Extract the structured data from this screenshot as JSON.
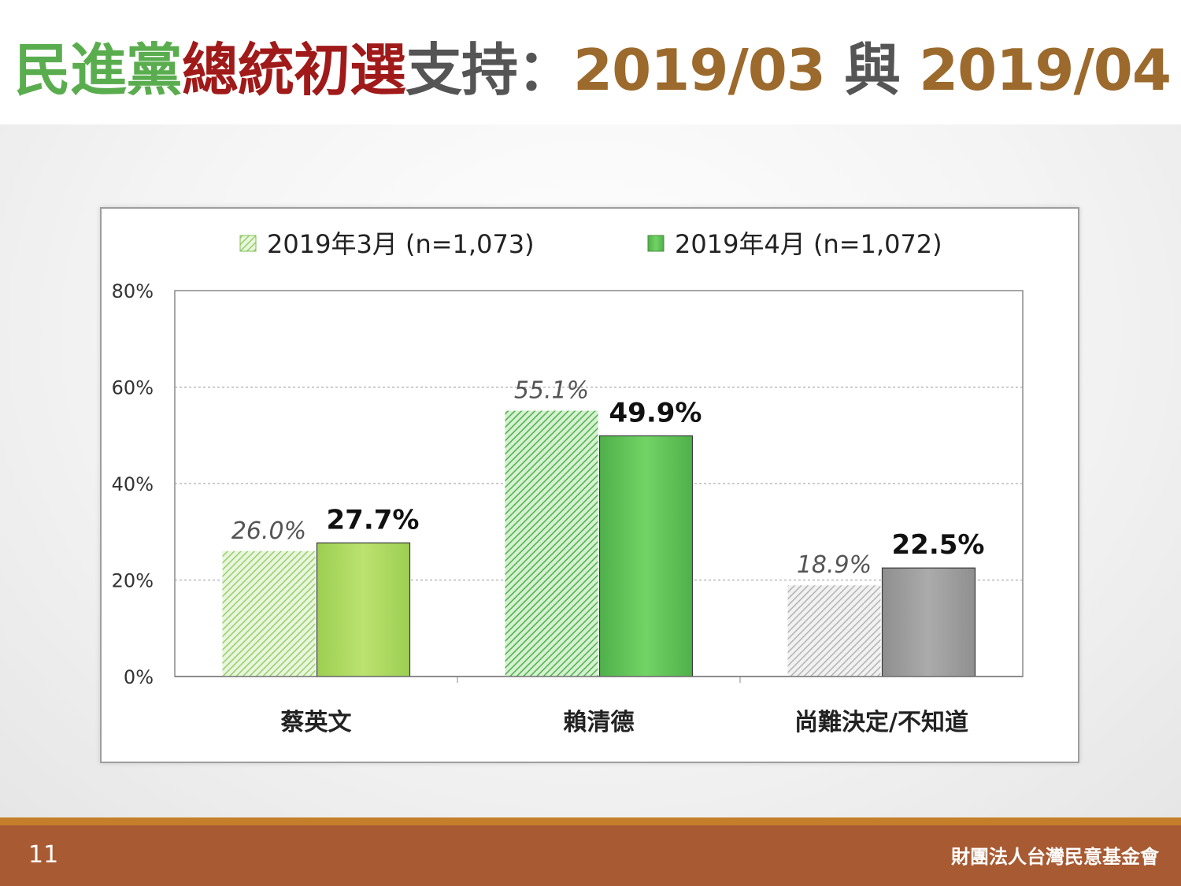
{
  "title": {
    "seg1": "民進黨",
    "seg2": "總統初選",
    "seg3": "支持：",
    "seg4": "2019/03",
    "seg5": " 與 ",
    "seg6": "2019/04",
    "colors": {
      "green": "#5aad4e",
      "red": "#a01a1a",
      "gray": "#555555",
      "brown": "#9c6a2c"
    }
  },
  "footer": {
    "page_number": "11",
    "organization": "財團法人台灣民意基金會"
  },
  "chart_data": {
    "type": "bar",
    "categories": [
      "蔡英文",
      "賴清德",
      "尚難決定/不知道"
    ],
    "series": [
      {
        "name": "2019年3月 (n=1,073)",
        "values": [
          26.0,
          55.1,
          18.9
        ],
        "labels": [
          "26.0%",
          "55.1%",
          "18.9%"
        ],
        "style": "hatched"
      },
      {
        "name": "2019年4月 (n=1,072)",
        "values": [
          27.7,
          49.9,
          22.5
        ],
        "labels": [
          "27.7%",
          "49.9%",
          "22.5%"
        ],
        "style": "solid"
      }
    ],
    "colors": {
      "march": [
        "#a6d77a",
        "#5cbf57",
        "#b5b5b5"
      ],
      "april": [
        "#b9df6c",
        "#6acd60",
        "#a3a3a3"
      ],
      "legend_march": "#9fd27a",
      "legend_april": "#6ab04c"
    },
    "ylim": [
      0,
      80
    ],
    "yticks": [
      "0%",
      "20%",
      "40%",
      "60%",
      "80%"
    ],
    "grid": true,
    "legend_position": "top"
  }
}
